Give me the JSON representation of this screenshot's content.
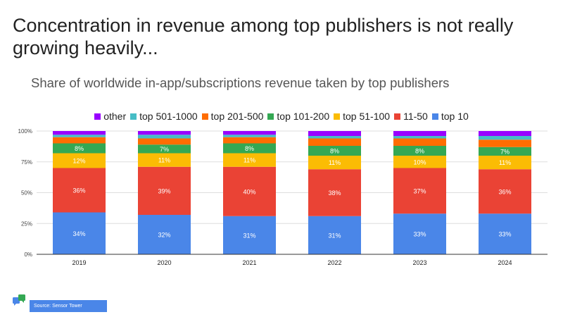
{
  "headline": "Concentration in revenue among top publishers is not really growing heavily...",
  "footer": {
    "source": "Source: Sensor Tower",
    "logo_icon": "chat-bubbles-icon"
  },
  "chart_data": {
    "type": "bar",
    "stacked": true,
    "title": "Share of worldwide in-app/subscriptions revenue taken by top publishers",
    "xlabel": "",
    "ylabel": "",
    "ylim": [
      0,
      100
    ],
    "y_ticks": [
      "0%",
      "25%",
      "50%",
      "75%",
      "100%"
    ],
    "y_tick_values": [
      0,
      25,
      50,
      75,
      100
    ],
    "legend_position": "top-center",
    "gridlines": true,
    "categories": [
      "2019",
      "2020",
      "2021",
      "2022",
      "2023",
      "2024"
    ],
    "series": [
      {
        "name": "top 10",
        "color": "#4A86E8",
        "values": [
          34,
          32,
          31,
          31,
          33,
          33
        ],
        "labels": [
          "34%",
          "32%",
          "31%",
          "31%",
          "33%",
          "33%"
        ]
      },
      {
        "name": "11-50",
        "color": "#EA4335",
        "values": [
          36,
          39,
          40,
          38,
          37,
          36
        ],
        "labels": [
          "36%",
          "39%",
          "40%",
          "38%",
          "37%",
          "36%"
        ]
      },
      {
        "name": "top 51-100",
        "color": "#FBBC04",
        "values": [
          12,
          11,
          11,
          11,
          10,
          11
        ],
        "labels": [
          "12%",
          "11%",
          "11%",
          "11%",
          "10%",
          "11%"
        ]
      },
      {
        "name": "top 101-200",
        "color": "#34A853",
        "values": [
          8,
          7,
          8,
          8,
          8,
          7
        ],
        "labels": [
          "8%",
          "7%",
          "8%",
          "8%",
          "8%",
          "7%"
        ]
      },
      {
        "name": "top 201-500",
        "color": "#FF6D01",
        "values": [
          5,
          5,
          5,
          6,
          6,
          6
        ],
        "labels": [
          "",
          "",
          "",
          "",
          "",
          ""
        ]
      },
      {
        "name": "top 501-1000",
        "color": "#46BDC6",
        "values": [
          2,
          3,
          2,
          2,
          2,
          3
        ],
        "labels": [
          "",
          "",
          "",
          "",
          "",
          ""
        ]
      },
      {
        "name": "other",
        "color": "#9900FF",
        "values": [
          3,
          3,
          3,
          4,
          4,
          4
        ],
        "labels": [
          "",
          "",
          "",
          "",
          "",
          ""
        ]
      }
    ],
    "legend_order": [
      "other",
      "top 501-1000",
      "top 201-500",
      "top 101-200",
      "top 51-100",
      "11-50",
      "top 10"
    ]
  }
}
